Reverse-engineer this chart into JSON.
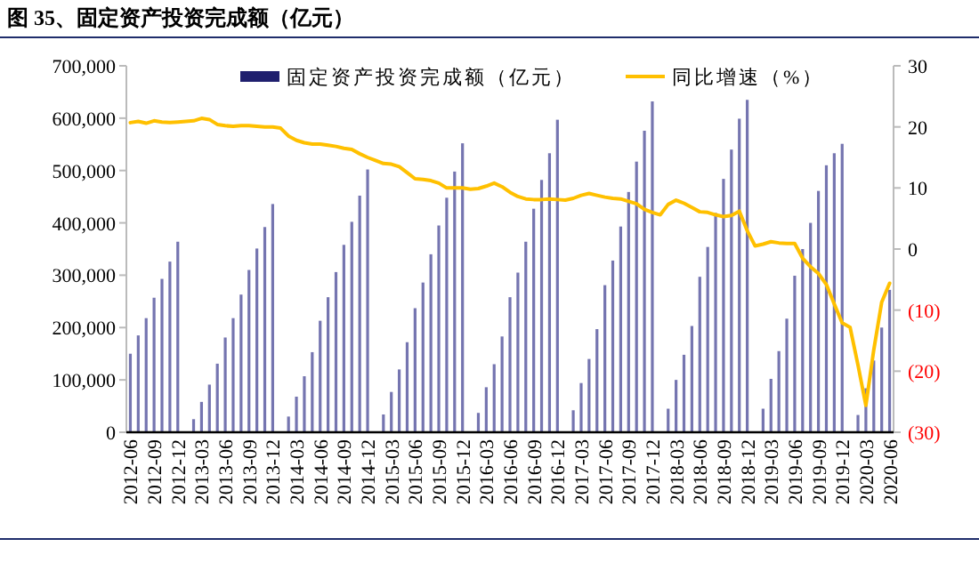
{
  "chart_data": {
    "type": "bar",
    "title": "图 35、固定资产投资完成额（亿元）",
    "categories": [
      "2012-06",
      null,
      null,
      "2012-09",
      null,
      null,
      "2012-12",
      null,
      null,
      "2013-03",
      null,
      null,
      "2013-06",
      null,
      null,
      "2013-09",
      null,
      null,
      "2013-12",
      null,
      null,
      "2014-03",
      null,
      null,
      "2014-06",
      null,
      null,
      "2014-09",
      null,
      null,
      "2014-12",
      null,
      null,
      "2015-03",
      null,
      null,
      "2015-06",
      null,
      null,
      "2015-09",
      null,
      null,
      "2015-12",
      null,
      null,
      "2016-03",
      null,
      null,
      "2016-06",
      null,
      null,
      "2016-09",
      null,
      null,
      "2016-12",
      null,
      null,
      "2017-03",
      null,
      null,
      "2017-06",
      null,
      null,
      "2017-09",
      null,
      null,
      "2017-12",
      null,
      null,
      "2018-03",
      null,
      null,
      "2018-06",
      null,
      null,
      "2018-09",
      null,
      null,
      "2018-12",
      null,
      null,
      "2019-03",
      null,
      null,
      "2019-06",
      null,
      null,
      "2019-09",
      null,
      null,
      "2019-12",
      null,
      null,
      "2020-03",
      null,
      null,
      "2020-06"
    ],
    "series": [
      {
        "name": "固定资产投资完成额（亿元）",
        "color": "#7575b0",
        "values": [
          150000,
          185000,
          218000,
          257000,
          293000,
          326000,
          364000,
          null,
          25000,
          58000,
          91000,
          131000,
          181000,
          218000,
          263000,
          310000,
          351000,
          392000,
          436000,
          null,
          30000,
          68000,
          107000,
          153000,
          213000,
          258000,
          306000,
          358000,
          402000,
          452000,
          502000,
          null,
          34000,
          77000,
          120000,
          172000,
          237000,
          286000,
          340000,
          395000,
          448000,
          498000,
          552000,
          null,
          37000,
          86000,
          130000,
          183000,
          258000,
          305000,
          364000,
          427000,
          482000,
          533000,
          597000,
          null,
          42000,
          94000,
          140000,
          197000,
          281000,
          328000,
          393000,
          459000,
          517000,
          576000,
          632000,
          null,
          45000,
          100000,
          148000,
          203000,
          297000,
          354000,
          419000,
          484000,
          540000,
          599000,
          635000,
          null,
          45000,
          102000,
          155000,
          217000,
          299000,
          350000,
          400000,
          461000,
          510000,
          533000,
          551000,
          null,
          33000,
          84000,
          137000,
          200000,
          272000
        ]
      },
      {
        "name": "同比增速（%）",
        "type": "line",
        "axis": "y2",
        "color": "#ffc000",
        "values": [
          20.7,
          20.9,
          20.6,
          21.0,
          20.8,
          20.7,
          20.8,
          20.9,
          21.0,
          21.4,
          21.2,
          20.4,
          20.2,
          20.1,
          20.2,
          20.2,
          20.1,
          20.0,
          20.0,
          19.8,
          18.5,
          17.8,
          17.4,
          17.2,
          17.2,
          17.0,
          16.8,
          16.5,
          16.3,
          15.6,
          15.0,
          14.5,
          14.0,
          13.9,
          13.5,
          12.5,
          11.5,
          11.4,
          11.2,
          10.8,
          10.0,
          10.0,
          10.0,
          9.8,
          9.9,
          10.3,
          10.8,
          10.2,
          9.3,
          8.6,
          8.2,
          8.1,
          8.1,
          8.2,
          8.1,
          8.0,
          8.3,
          8.8,
          9.1,
          8.8,
          8.5,
          8.3,
          8.2,
          7.8,
          7.4,
          6.5,
          6.0,
          5.6,
          7.3,
          8.0,
          7.5,
          6.8,
          6.1,
          6.0,
          5.6,
          5.3,
          5.5,
          6.2,
          3.0,
          0.5,
          0.8,
          1.2,
          1.0,
          0.9,
          0.9,
          -1.5,
          -2.9,
          -4.0,
          -5.8,
          -9.0,
          -12.1,
          -12.8,
          -19.0,
          -25.6,
          -16.5,
          -8.7,
          -5.6
        ]
      }
    ],
    "ylim": [
      0,
      700000
    ],
    "yticks": [
      0,
      {
        "value": 100000,
        "label": "100,000"
      },
      {
        "value": 200000,
        "label": "200,000"
      },
      {
        "value": 300000,
        "label": "300,000"
      },
      {
        "value": 400000,
        "label": "400,000"
      },
      {
        "value": 500000,
        "label": "500,000"
      },
      {
        "value": 600000,
        "label": "600,000"
      },
      {
        "value": 700000,
        "label": "700,000"
      }
    ],
    "y2lim": [
      -30,
      30
    ],
    "y2ticks": [
      {
        "value": -30,
        "label": "(30)"
      },
      {
        "value": -20,
        "label": "(20)"
      },
      {
        "value": -10,
        "label": "(10)"
      },
      0,
      10,
      20,
      30
    ],
    "legend": "top"
  }
}
